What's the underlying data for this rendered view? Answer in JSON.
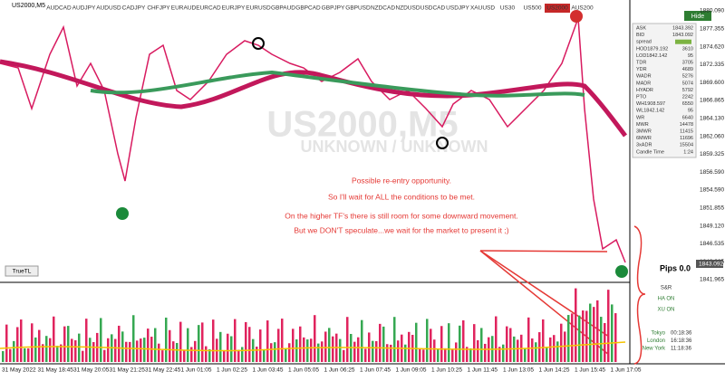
{
  "window": {
    "title": "US2000,M5"
  },
  "symbols": [
    "AUDCAD",
    "AUDJPY",
    "AUDUSD",
    "CADJPY",
    "CHFJPY",
    "EURAUD",
    "EURCAD",
    "EURJPY",
    "EURUSD",
    "GBPAUD",
    "GBPCAD",
    "GBPJPY",
    "GBPUSD",
    "NZDCAD",
    "NZDUSD",
    "USDCAD",
    "USDJPY",
    "XAUUSD",
    "US30",
    "US500",
    "US2000",
    "AUS200"
  ],
  "panel": {
    "hide": "Hide",
    "rows": [
      [
        "ASK",
        "1843.392"
      ],
      [
        "BID",
        "1843.092"
      ],
      [
        "spread"
      ],
      [
        "HOD1879.192",
        "3610"
      ],
      [
        "LOD1842.142",
        "95"
      ],
      [
        "TDR",
        "3705"
      ],
      [
        "YDR",
        "4689"
      ],
      [
        "WADR",
        "5276"
      ],
      [
        "MADR",
        "5074"
      ],
      [
        "HYADR",
        "5792"
      ],
      [
        "PTO",
        "2242"
      ],
      [
        "WH1908.597",
        "6550"
      ],
      [
        "WL1842.142",
        "95"
      ],
      [
        "WR",
        "6640"
      ],
      [
        "MWR",
        "14478"
      ],
      [
        "3MWR",
        "11415"
      ],
      [
        "6MWR",
        "11696"
      ],
      [
        "3xADR",
        "15504"
      ],
      [
        "Candle Time",
        "1:24"
      ]
    ]
  },
  "price_axis": {
    "labels": [
      "1880.090",
      "1877.355",
      "1874.620",
      "1872.335",
      "1869.600",
      "1866.865",
      "1864.130",
      "1862.060",
      "1859.325",
      "1856.590",
      "1854.590",
      "1851.855",
      "1849.120",
      "1846.535",
      "1843.985",
      "1841.965"
    ],
    "current": "1843.092"
  },
  "watermark": {
    "symbol": "US2000,M5",
    "account": "UNKNOWN / UNKNOWN"
  },
  "annotation": {
    "lines": [
      "Possible re-entry opportunity.",
      "So I'll wait for ALL the conditions to be met.",
      "On the higher TF's there is still room for some downward movement.",
      "But we DON'T speculate...we wait for the market to present it ;)"
    ]
  },
  "buttons": {
    "truetl": "TrueTL"
  },
  "pips": "Pips 0.0",
  "indicator": {
    "labels": [
      "S&R",
      "HA ON",
      "XU ON"
    ],
    "sessions": [
      [
        "Tokyo",
        "00:18:36"
      ],
      [
        "London",
        "16:18:36"
      ],
      [
        "New York",
        "11:18:36"
      ]
    ]
  },
  "time_axis": [
    "31 May 2022",
    "31 May 18:45",
    "31 May 20:05",
    "31 May 21:25",
    "31 May 22:45",
    "1 Jun 01:05",
    "1 Jun 02:25",
    "1 Jun 03:45",
    "1 Jun 05:05",
    "1 Jun 06:25",
    "1 Jun 07:45",
    "1 Jun 09:05",
    "1 Jun 10:25",
    "1 Jun 11:45",
    "1 Jun 13:05",
    "1 Jun 14:25",
    "1 Jun 15:45",
    "1 Jun 17:05"
  ]
}
